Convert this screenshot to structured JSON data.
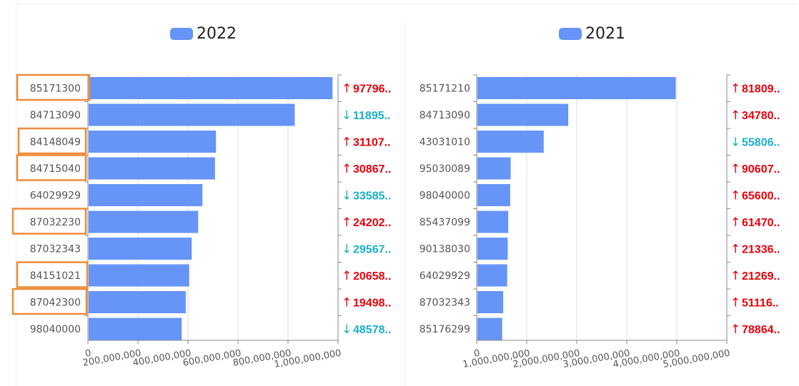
{
  "colors": {
    "bar": "#6694f7",
    "up": "#e8000b",
    "down": "#1ab0c8",
    "highlight": "#ee8a3a",
    "grid": "#dddddd",
    "axis": "#888888"
  },
  "chart_data": [
    {
      "type": "bar",
      "orientation": "horizontal",
      "legend": "2022",
      "legend_position": "top",
      "categories": [
        "85171300",
        "84713090",
        "84148049",
        "84715040",
        "64029929",
        "87032230",
        "87032343",
        "84151021",
        "87042300",
        "98040000"
      ],
      "values": [
        978000000,
        827000000,
        512000000,
        508000000,
        458000000,
        441000000,
        415000000,
        405000000,
        391000000,
        375000000
      ],
      "xlim": [
        0,
        1000000000
      ],
      "xticks": [
        "0",
        "200,000,000",
        "400,000,000",
        "600,000,000",
        "800,000,000",
        "1,000,000,000"
      ],
      "highlighted": [
        "85171300",
        "84148049",
        "84715040",
        "87032230",
        "84151021",
        "87042300"
      ],
      "changes": [
        {
          "dir": "up",
          "arrow": "↑",
          "text": "97796.."
        },
        {
          "dir": "down",
          "arrow": "↓",
          "text": "11895.."
        },
        {
          "dir": "up",
          "arrow": "↑",
          "text": "31107.."
        },
        {
          "dir": "up",
          "arrow": "↑",
          "text": "30867.."
        },
        {
          "dir": "down",
          "arrow": "↓",
          "text": "33585.."
        },
        {
          "dir": "up",
          "arrow": "↑",
          "text": "24202.."
        },
        {
          "dir": "down",
          "arrow": "↓",
          "text": "29567.."
        },
        {
          "dir": "up",
          "arrow": "↑",
          "text": "20658.."
        },
        {
          "dir": "up",
          "arrow": "↑",
          "text": "19498.."
        },
        {
          "dir": "down",
          "arrow": "↓",
          "text": "48578.."
        }
      ]
    },
    {
      "type": "bar",
      "orientation": "horizontal",
      "legend": "2021",
      "legend_position": "top",
      "categories": [
        "85171210",
        "84713090",
        "43031010",
        "95030089",
        "98040000",
        "85437099",
        "90138030",
        "64029929",
        "87032343",
        "85176299"
      ],
      "values": [
        3980000000,
        1830000000,
        1340000000,
        680000000,
        670000000,
        630000000,
        620000000,
        610000000,
        530000000,
        510000000
      ],
      "xlim": [
        0,
        5000000000
      ],
      "xticks": [
        "0",
        "1,000,000,000",
        "2,000,000,000",
        "3,000,000,000",
        "4,000,000,000",
        "5,000,000,000"
      ],
      "highlighted": [],
      "changes": [
        {
          "dir": "up",
          "arrow": "↑",
          "text": "81809.."
        },
        {
          "dir": "up",
          "arrow": "↑",
          "text": "34780.."
        },
        {
          "dir": "down",
          "arrow": "↓",
          "text": "55806.."
        },
        {
          "dir": "up",
          "arrow": "↑",
          "text": "90607.."
        },
        {
          "dir": "up",
          "arrow": "↑",
          "text": "65600.."
        },
        {
          "dir": "up",
          "arrow": "↑",
          "text": "61470.."
        },
        {
          "dir": "up",
          "arrow": "↑",
          "text": "21336.."
        },
        {
          "dir": "up",
          "arrow": "↑",
          "text": "21269.."
        },
        {
          "dir": "up",
          "arrow": "↑",
          "text": "51116.."
        },
        {
          "dir": "up",
          "arrow": "↑",
          "text": "78864.."
        }
      ]
    }
  ]
}
